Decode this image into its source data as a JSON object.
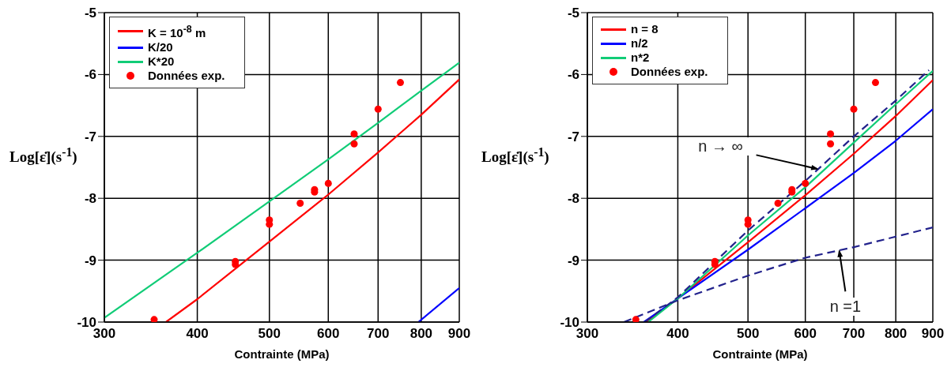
{
  "chart_data": [
    {
      "type": "line",
      "xlabel": "Contrainte (MPa)",
      "ylabel": "Log[ε̇](s$^{-1}$)",
      "log": "x",
      "xlim": [
        300,
        900
      ],
      "xticks": [
        300,
        400,
        500,
        600,
        700,
        800,
        900
      ],
      "ylim": [
        -10,
        -5
      ],
      "yticks": [
        -10,
        -9,
        -8,
        -7,
        -6,
        -5
      ],
      "grid": true,
      "legend": "top left",
      "series": [
        {
          "name": "K = 10$^{-8}$ m",
          "color": "#ff0000",
          "marker": "none",
          "x": [
            363,
            400,
            500,
            600,
            700,
            800,
            900
          ],
          "values": [
            -10,
            -9.63,
            -8.7,
            -7.94,
            -7.26,
            -6.65,
            -6.08
          ]
        },
        {
          "name": "K/20",
          "color": "#0000ff",
          "marker": "none",
          "x": [
            793,
            900
          ],
          "values": [
            -10,
            -9.45
          ]
        },
        {
          "name": "K*20",
          "color": "#11cc77",
          "marker": "none",
          "x": [
            300,
            400,
            500,
            600,
            700,
            800,
            900
          ],
          "values": [
            -9.93,
            -8.88,
            -8.05,
            -7.37,
            -6.78,
            -6.26,
            -5.81
          ]
        },
        {
          "name": "Données exp.",
          "type": "scatter",
          "color": "#ff0000",
          "marker": "circle",
          "x": [
            350,
            450,
            450,
            500,
            500,
            550,
            575,
            575,
            600,
            650,
            650,
            700,
            750
          ],
          "values": [
            -9.96,
            -9.02,
            -9.07,
            -8.35,
            -8.42,
            -8.08,
            -7.86,
            -7.9,
            -7.76,
            -6.96,
            -7.12,
            -6.56,
            -6.13
          ]
        }
      ]
    },
    {
      "type": "line",
      "xlabel": "Contrainte (MPa)",
      "ylabel": "Log[ε̇](s$^{-1}$)",
      "log": "x",
      "xlim": [
        300,
        900
      ],
      "xticks": [
        300,
        400,
        500,
        600,
        700,
        800,
        900
      ],
      "ylim": [
        -10,
        -5
      ],
      "yticks": [
        -10,
        -9,
        -8,
        -7,
        -6,
        -5
      ],
      "grid": true,
      "legend": "top left",
      "annotations": [
        {
          "text": "n → ∞",
          "x": 626,
          "y": -7.53
        },
        {
          "text": "n =1",
          "x": 668,
          "y": -8.83
        }
      ],
      "series": [
        {
          "name": "n = 8",
          "color": "#ff0000",
          "marker": "none",
          "x": [
            362,
            400,
            500,
            600,
            700,
            800,
            900
          ],
          "values": [
            -10,
            -9.62,
            -8.71,
            -7.95,
            -7.28,
            -6.67,
            -6.09
          ]
        },
        {
          "name": "n/2",
          "color": "#0000ff",
          "marker": "none",
          "x": [
            359,
            400,
            500,
            600,
            700,
            800,
            900
          ],
          "values": [
            -10,
            -9.62,
            -8.83,
            -8.16,
            -7.59,
            -7.07,
            -6.56
          ]
        },
        {
          "name": "n*2",
          "color": "#11cc77",
          "marker": "none",
          "x": [
            364,
            400,
            500,
            600,
            700,
            800,
            900
          ],
          "values": [
            -10,
            -9.62,
            -8.6,
            -7.82,
            -7.1,
            -6.48,
            -5.94
          ]
        },
        {
          "color": "#22228c",
          "marker": "none",
          "line_style": "dashed",
          "x": [
            360,
            400,
            500,
            600,
            700,
            800,
            889
          ],
          "values": [
            -10,
            -9.6,
            -8.52,
            -7.72,
            -7.0,
            -6.42,
            -5.93
          ]
        },
        {
          "color": "#22228c",
          "marker": "none",
          "line_style": "dashed",
          "x": [
            337,
            400,
            500,
            600,
            700,
            800,
            900
          ],
          "values": [
            -10,
            -9.65,
            -9.25,
            -8.96,
            -8.79,
            -8.62,
            -8.47
          ]
        },
        {
          "name": "Données exp.",
          "type": "scatter",
          "color": "#ff0000",
          "marker": "circle",
          "x": [
            350,
            450,
            450,
            500,
            500,
            550,
            575,
            575,
            600,
            650,
            650,
            700,
            750
          ],
          "values": [
            -9.96,
            -9.02,
            -9.07,
            -8.35,
            -8.42,
            -8.08,
            -7.86,
            -7.9,
            -7.76,
            -6.96,
            -7.12,
            -6.56,
            -6.13
          ]
        }
      ]
    }
  ]
}
